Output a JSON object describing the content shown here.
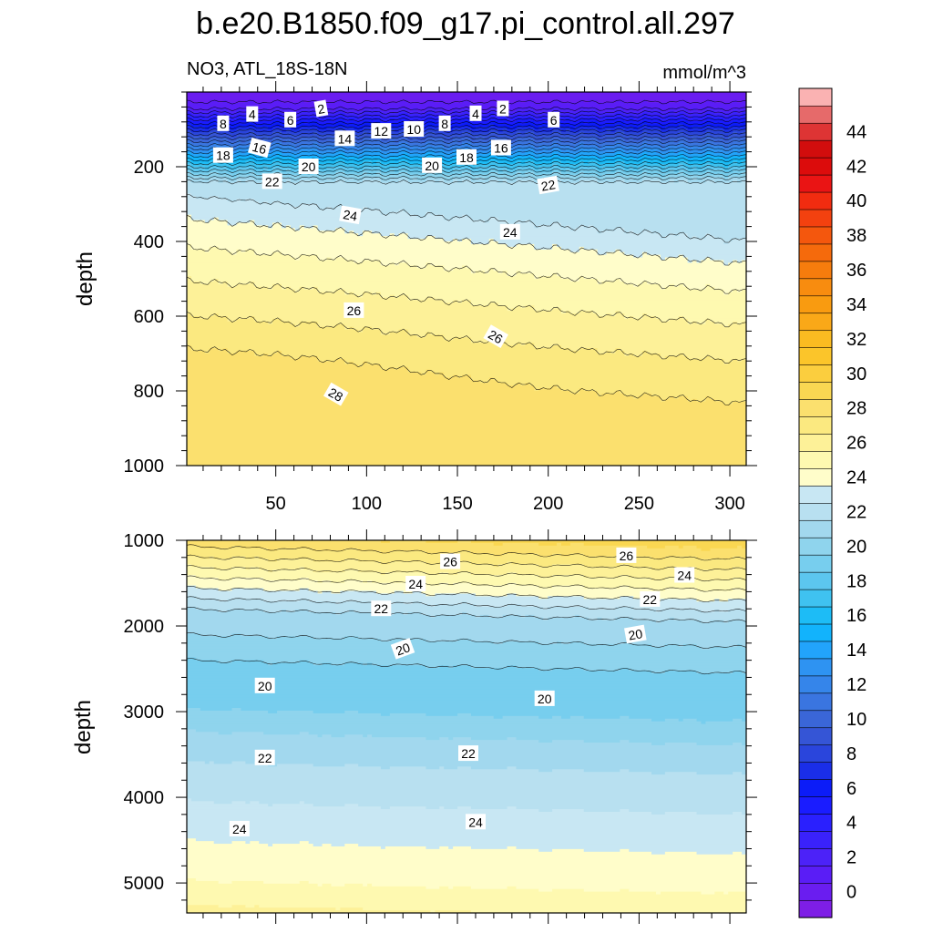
{
  "chart_data": {
    "type": "contour",
    "title": "b.e20.B1850.f09_g17.pi_control.all.297",
    "variable_label": "NO3, ATL_18S-18N",
    "units": "mmol/m^3",
    "x_tick_labels": [
      "50",
      "100",
      "150",
      "200",
      "250",
      "300"
    ],
    "x_ticks": [
      50,
      100,
      150,
      200,
      250,
      300
    ],
    "xlim": [
      1,
      309
    ],
    "panels": [
      {
        "name": "upper",
        "ylabel": "depth",
        "ylim": [
          0,
          1000
        ],
        "y_ticks": [
          200,
          400,
          600,
          800,
          1000
        ],
        "y_tick_labels": [
          "200",
          "400",
          "600",
          "800",
          "1000"
        ],
        "contour_labels": [
          {
            "text": "2",
            "x": 75,
            "y": 45,
            "rot": -10
          },
          {
            "text": "4",
            "x": 37,
            "y": 60,
            "rot": 0
          },
          {
            "text": "6",
            "x": 58,
            "y": 75,
            "rot": 0
          },
          {
            "text": "8",
            "x": 21,
            "y": 85,
            "rot": 0
          },
          {
            "text": "2",
            "x": 175,
            "y": 45,
            "rot": 0
          },
          {
            "text": "4",
            "x": 160,
            "y": 58,
            "rot": 0
          },
          {
            "text": "6",
            "x": 203,
            "y": 75,
            "rot": 0
          },
          {
            "text": "8",
            "x": 143,
            "y": 85,
            "rot": 0
          },
          {
            "text": "10",
            "x": 126,
            "y": 100,
            "rot": 0
          },
          {
            "text": "12",
            "x": 108,
            "y": 105,
            "rot": 0
          },
          {
            "text": "14",
            "x": 88,
            "y": 125,
            "rot": 0
          },
          {
            "text": "16",
            "x": 41,
            "y": 150,
            "rot": 15
          },
          {
            "text": "16",
            "x": 174,
            "y": 150,
            "rot": 0
          },
          {
            "text": "18",
            "x": 21,
            "y": 170,
            "rot": 0
          },
          {
            "text": "18",
            "x": 155,
            "y": 175,
            "rot": 0
          },
          {
            "text": "20",
            "x": 68,
            "y": 200,
            "rot": 0
          },
          {
            "text": "20",
            "x": 136,
            "y": 197,
            "rot": 0
          },
          {
            "text": "22",
            "x": 48,
            "y": 240,
            "rot": 0
          },
          {
            "text": "22",
            "x": 200,
            "y": 250,
            "rot": -10
          },
          {
            "text": "24",
            "x": 91,
            "y": 330,
            "rot": 10
          },
          {
            "text": "24",
            "x": 179,
            "y": 375,
            "rot": 0
          },
          {
            "text": "26",
            "x": 93,
            "y": 585,
            "rot": 0
          },
          {
            "text": "26",
            "x": 171,
            "y": 655,
            "rot": 30
          },
          {
            "text": "28",
            "x": 83,
            "y": 810,
            "rot": 30
          }
        ]
      },
      {
        "name": "lower",
        "ylabel": "depth",
        "ylim": [
          1000,
          5350
        ],
        "y_ticks": [
          1000,
          2000,
          3000,
          4000,
          5000
        ],
        "y_tick_labels": [
          "1000",
          "2000",
          "3000",
          "4000",
          "5000"
        ],
        "contour_labels": [
          {
            "text": "26",
            "x": 146,
            "y": 1250,
            "rot": 0
          },
          {
            "text": "26",
            "x": 243,
            "y": 1180,
            "rot": 0
          },
          {
            "text": "24",
            "x": 127,
            "y": 1510,
            "rot": 0
          },
          {
            "text": "24",
            "x": 275,
            "y": 1410,
            "rot": 0
          },
          {
            "text": "22",
            "x": 108,
            "y": 1800,
            "rot": 0
          },
          {
            "text": "22",
            "x": 256,
            "y": 1690,
            "rot": 0
          },
          {
            "text": "20",
            "x": 120,
            "y": 2270,
            "rot": -20
          },
          {
            "text": "20",
            "x": 248,
            "y": 2100,
            "rot": -10
          },
          {
            "text": "20",
            "x": 44,
            "y": 2700,
            "rot": 0
          },
          {
            "text": "20",
            "x": 198,
            "y": 2850,
            "rot": 0
          },
          {
            "text": "22",
            "x": 44,
            "y": 3540,
            "rot": 0
          },
          {
            "text": "22",
            "x": 156,
            "y": 3490,
            "rot": 0
          },
          {
            "text": "24",
            "x": 30,
            "y": 4370,
            "rot": 0
          },
          {
            "text": "24",
            "x": 160,
            "y": 4290,
            "rot": 0
          }
        ]
      }
    ],
    "colorbar": {
      "tick_labels": [
        "0",
        "2",
        "4",
        "6",
        "8",
        "10",
        "12",
        "14",
        "16",
        "18",
        "20",
        "22",
        "24",
        "26",
        "28",
        "30",
        "32",
        "34",
        "36",
        "38",
        "40",
        "42",
        "44"
      ],
      "levels": [
        -1,
        0,
        1,
        2,
        3,
        4,
        5,
        6,
        7,
        8,
        9,
        10,
        11,
        12,
        13,
        14,
        15,
        16,
        17,
        18,
        19,
        20,
        21,
        22,
        23,
        24,
        25,
        26,
        27,
        28,
        29,
        30,
        31,
        32,
        33,
        34,
        35,
        36,
        37,
        38,
        39,
        40,
        41,
        42,
        43,
        44,
        45,
        46
      ],
      "colors": [
        "#7e1ee6",
        "#6a1df0",
        "#5a1df6",
        "#4c22f8",
        "#3a22fb",
        "#2a20fe",
        "#1a1cff",
        "#0c1cf8",
        "#1a2ee8",
        "#2a45dc",
        "#3555d6",
        "#3a66d8",
        "#3a75e0",
        "#3585ea",
        "#2e93f2",
        "#22a4fb",
        "#12b3fc",
        "#1dbcf6",
        "#3fc2f0",
        "#5cc6ef",
        "#77ceee",
        "#8fd4ed",
        "#a2d8ee",
        "#b8e0f0",
        "#c8e7f3",
        "#fffdca",
        "#fef9b0",
        "#fdf198",
        "#fbe980",
        "#fbe06e",
        "#fad752",
        "#fbce3e",
        "#fbc52a",
        "#fbbb21",
        "#faa818",
        "#f99b10",
        "#f88c0f",
        "#f67c0d",
        "#f56a0c",
        "#f4570d",
        "#f3410f",
        "#f12c10",
        "#ea1414",
        "#dc0c0c",
        "#d20d0d",
        "#de3434",
        "#e66a6a",
        "#fab2b2"
      ]
    }
  }
}
